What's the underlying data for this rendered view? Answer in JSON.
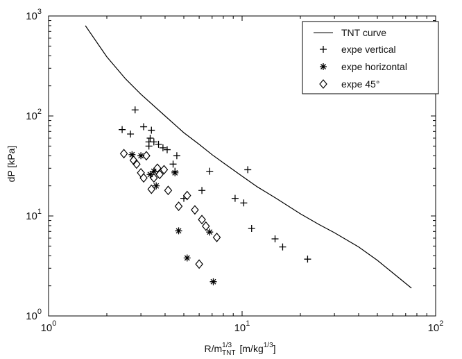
{
  "chart_data": {
    "type": "scatter",
    "x_scale": "log",
    "y_scale": "log",
    "xlim": [
      1,
      100
    ],
    "ylim": [
      1,
      1000
    ],
    "grid": false,
    "legend_position": "top-right",
    "x_ticks": [
      {
        "value": 1,
        "base": "10",
        "exp": "0"
      },
      {
        "value": 10,
        "base": "10",
        "exp": "1"
      },
      {
        "value": 100,
        "base": "10",
        "exp": "2"
      }
    ],
    "y_ticks": [
      {
        "value": 1,
        "base": "10",
        "exp": "0"
      },
      {
        "value": 10,
        "base": "10",
        "exp": "1"
      },
      {
        "value": 100,
        "base": "10",
        "exp": "2"
      },
      {
        "value": 1000,
        "base": "10",
        "exp": "3"
      }
    ],
    "xlabel": {
      "main": "R/m",
      "sup": "1/3",
      "sub": "TNT",
      "units_open": "[m/kg",
      "units_sup": "1/3",
      "units_close": "]"
    },
    "ylabel": "dP  [kPa]",
    "series": [
      {
        "name": "TNT curve",
        "marker": "line",
        "color": "#000000",
        "points": [
          [
            1.55,
            800
          ],
          [
            2,
            390
          ],
          [
            2.5,
            235
          ],
          [
            3,
            165
          ],
          [
            4,
            100
          ],
          [
            5,
            68
          ],
          [
            6,
            52
          ],
          [
            7,
            41
          ],
          [
            8,
            34
          ],
          [
            10,
            25
          ],
          [
            12,
            19.5
          ],
          [
            15,
            15
          ],
          [
            20,
            10.5
          ],
          [
            25,
            8.2
          ],
          [
            30,
            6.8
          ],
          [
            40,
            4.9
          ],
          [
            50,
            3.6
          ],
          [
            60,
            2.7
          ],
          [
            75,
            1.9
          ]
        ]
      },
      {
        "name": "expe vertical",
        "marker": "plus",
        "color": "#000000",
        "points": [
          [
            2.4,
            73
          ],
          [
            2.65,
            66
          ],
          [
            2.8,
            115
          ],
          [
            3.1,
            78
          ],
          [
            3.3,
            55
          ],
          [
            3.4,
            72
          ],
          [
            3.35,
            60
          ],
          [
            3.5,
            55
          ],
          [
            3.3,
            50
          ],
          [
            3.7,
            52
          ],
          [
            3.9,
            48
          ],
          [
            4.1,
            46
          ],
          [
            4.4,
            33
          ],
          [
            4.5,
            28
          ],
          [
            4.6,
            40
          ],
          [
            5.0,
            15
          ],
          [
            6.2,
            18
          ],
          [
            6.8,
            28
          ],
          [
            9.2,
            15
          ],
          [
            10.2,
            13.5
          ],
          [
            10.7,
            29
          ],
          [
            11.2,
            7.5
          ],
          [
            14.8,
            5.9
          ],
          [
            16.2,
            4.9
          ],
          [
            21.8,
            3.7
          ]
        ]
      },
      {
        "name": "expe horizontal",
        "marker": "asterisk",
        "color": "#000000",
        "points": [
          [
            2.7,
            41
          ],
          [
            3.0,
            40
          ],
          [
            3.35,
            26
          ],
          [
            3.5,
            28
          ],
          [
            3.6,
            20
          ],
          [
            4.5,
            27
          ],
          [
            4.7,
            7.1
          ],
          [
            5.2,
            3.8
          ],
          [
            6.8,
            6.9
          ],
          [
            7.1,
            2.2
          ]
        ]
      },
      {
        "name": "expe 45°",
        "marker": "diamond",
        "color": "#000000",
        "points": [
          [
            2.45,
            42
          ],
          [
            2.75,
            36
          ],
          [
            2.85,
            33
          ],
          [
            3.0,
            27
          ],
          [
            3.1,
            24
          ],
          [
            3.2,
            40
          ],
          [
            3.4,
            18.5
          ],
          [
            3.5,
            24
          ],
          [
            3.65,
            30
          ],
          [
            3.75,
            26
          ],
          [
            3.95,
            29
          ],
          [
            4.15,
            18
          ],
          [
            4.7,
            12.5
          ],
          [
            5.2,
            16
          ],
          [
            5.7,
            11.5
          ],
          [
            6.2,
            9.2
          ],
          [
            6.5,
            7.9
          ],
          [
            6.0,
            3.3
          ],
          [
            7.4,
            6.1
          ]
        ]
      }
    ]
  }
}
